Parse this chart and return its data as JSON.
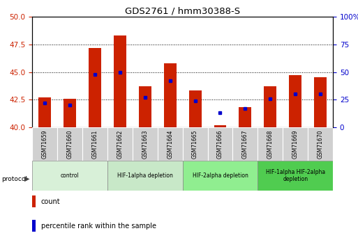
{
  "title": "GDS2761 / hmm30388-S",
  "samples": [
    "GSM71659",
    "GSM71660",
    "GSM71661",
    "GSM71662",
    "GSM71663",
    "GSM71664",
    "GSM71665",
    "GSM71666",
    "GSM71667",
    "GSM71668",
    "GSM71669",
    "GSM71670"
  ],
  "counts": [
    42.7,
    42.6,
    47.2,
    48.3,
    43.7,
    45.8,
    43.3,
    40.2,
    41.8,
    43.7,
    44.7,
    44.5
  ],
  "percentile_ranks": [
    22,
    20,
    48,
    50,
    27,
    42,
    24,
    13,
    17,
    26,
    30,
    30
  ],
  "bar_color": "#cc2200",
  "dot_color": "#0000cc",
  "ylim_left": [
    40,
    50
  ],
  "ylim_right": [
    0,
    100
  ],
  "yticks_left": [
    40,
    42.5,
    45,
    47.5,
    50
  ],
  "yticks_right": [
    0,
    25,
    50,
    75,
    100
  ],
  "ylabel_left_color": "#cc2200",
  "ylabel_right_color": "#0000cc",
  "protocol_groups": [
    {
      "label": "control",
      "start": 0,
      "end": 2,
      "color": "#d8f0d8"
    },
    {
      "label": "HIF-1alpha depletion",
      "start": 3,
      "end": 5,
      "color": "#c8e8c8"
    },
    {
      "label": "HIF-2alpha depletion",
      "start": 6,
      "end": 8,
      "color": "#90ee90"
    },
    {
      "label": "HIF-1alpha HIF-2alpha\ndepletion",
      "start": 9,
      "end": 11,
      "color": "#50cc50"
    }
  ],
  "protocol_arrow_label": "protocol",
  "legend_count_label": "count",
  "legend_pct_label": "percentile rank within the sample",
  "bg_color": "#ffffff",
  "xticklabel_area_color": "#d0d0d0"
}
